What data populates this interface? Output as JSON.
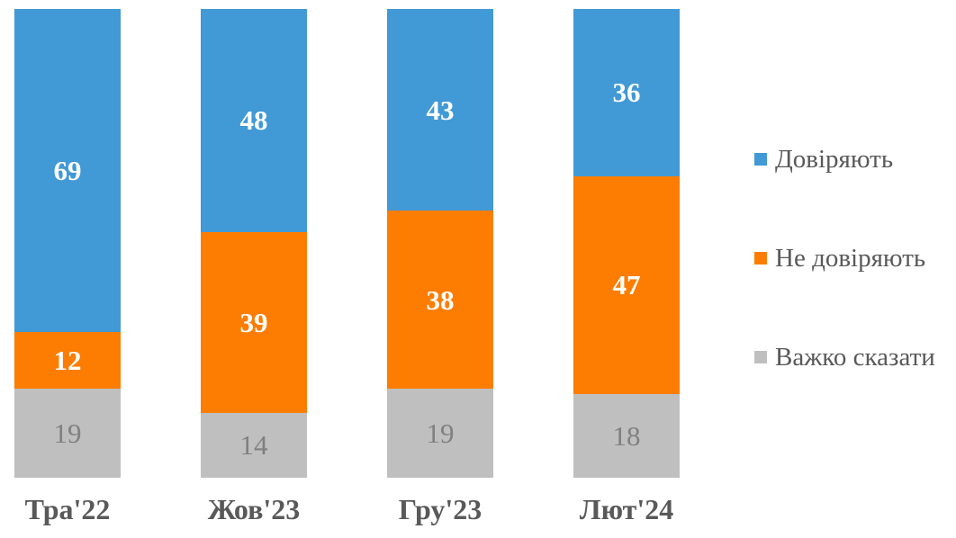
{
  "chart_data": {
    "type": "bar",
    "variant": "stacked-column-100-percent",
    "title": "",
    "xlabel": "",
    "ylabel": "",
    "categories": [
      "Тра'22",
      "Жов'23",
      "Гру'23",
      "Лют'24"
    ],
    "series": [
      {
        "name": "Довіряють",
        "color": "#4199D6",
        "value_label_color": "#FFFFFF",
        "values": [
          69,
          48,
          43,
          36
        ]
      },
      {
        "name": "Не довіряють",
        "color": "#FC7D02",
        "value_label_color": "#FFFFFF",
        "values": [
          12,
          39,
          38,
          47
        ]
      },
      {
        "name": "Важко сказати",
        "color": "#BFBFBF",
        "value_label_color": "#808080",
        "values": [
          19,
          14,
          19,
          18
        ]
      }
    ],
    "legend_position": "right",
    "layout": {
      "gridlines": false,
      "y_axis_visible": false,
      "x_axis_line_visible": false
    },
    "category_label_color": "#595959",
    "legend_text_color": "#595959",
    "background": "#FFFFFF"
  }
}
